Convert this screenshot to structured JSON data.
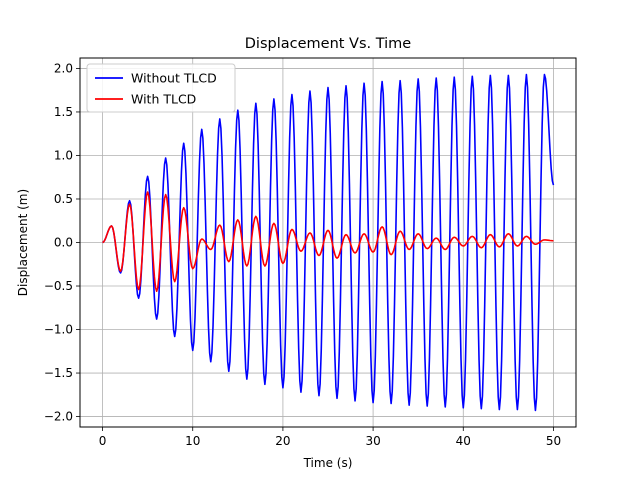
{
  "chart_data": {
    "type": "line",
    "title": "Displacement Vs. Time",
    "xlabel": "Time (s)",
    "ylabel": "Displacement (m)",
    "xlim": [
      -2.5,
      52.5
    ],
    "ylim": [
      -2.12,
      2.12
    ],
    "xticks": [
      0,
      10,
      20,
      30,
      40,
      50
    ],
    "yticks": [
      -2.0,
      -1.5,
      -1.0,
      -0.5,
      0.0,
      0.5,
      1.0,
      1.5,
      2.0
    ],
    "grid": true,
    "legend_position": "top-left",
    "series": [
      {
        "name": "Without TLCD",
        "color": "#0000ff",
        "x": [
          0,
          1,
          2,
          3,
          4,
          5,
          6,
          7,
          8,
          9,
          10,
          11,
          12,
          13,
          14,
          15,
          16,
          17,
          18,
          19,
          20,
          21,
          22,
          23,
          24,
          25,
          26,
          27,
          28,
          29,
          30,
          31,
          32,
          33,
          34,
          35,
          36,
          37,
          38,
          39,
          40,
          41,
          42,
          43,
          44,
          45,
          46,
          47,
          48,
          49,
          50
        ],
        "values": [
          0.0,
          0.19,
          -0.35,
          0.48,
          -0.64,
          0.76,
          -0.88,
          0.97,
          -1.08,
          1.14,
          -1.24,
          1.3,
          -1.37,
          1.42,
          -1.48,
          1.52,
          -1.57,
          1.6,
          -1.63,
          1.65,
          -1.67,
          1.7,
          -1.72,
          1.74,
          -1.76,
          1.78,
          -1.79,
          1.8,
          -1.82,
          1.83,
          -1.84,
          1.85,
          -1.85,
          1.86,
          -1.87,
          1.88,
          -1.88,
          1.89,
          -1.89,
          1.9,
          -1.9,
          1.91,
          -1.91,
          1.92,
          -1.92,
          1.92,
          -1.92,
          1.93,
          -1.93,
          1.93,
          0.66
        ]
      },
      {
        "name": "With TLCD",
        "color": "#ff0000",
        "x": [
          0,
          1,
          2,
          3,
          4,
          5,
          6,
          7,
          8,
          9,
          10,
          11,
          12,
          13,
          14,
          15,
          16,
          17,
          18,
          19,
          20,
          21,
          22,
          23,
          24,
          25,
          26,
          27,
          28,
          29,
          30,
          31,
          32,
          33,
          34,
          35,
          36,
          37,
          38,
          39,
          40,
          41,
          42,
          43,
          44,
          45,
          46,
          47,
          48,
          49,
          50
        ],
        "values": [
          0.0,
          0.19,
          -0.33,
          0.44,
          -0.54,
          0.58,
          -0.56,
          0.55,
          -0.45,
          0.4,
          -0.3,
          0.04,
          -0.08,
          0.2,
          -0.22,
          0.26,
          -0.27,
          0.3,
          -0.27,
          0.22,
          -0.24,
          0.15,
          -0.1,
          0.11,
          -0.15,
          0.14,
          -0.18,
          0.09,
          -0.12,
          0.1,
          -0.11,
          0.18,
          -0.14,
          0.13,
          -0.08,
          0.1,
          -0.07,
          0.05,
          -0.08,
          0.06,
          -0.04,
          0.07,
          -0.06,
          0.09,
          -0.05,
          0.1,
          -0.04,
          0.07,
          -0.02,
          0.03,
          0.02
        ]
      }
    ]
  }
}
